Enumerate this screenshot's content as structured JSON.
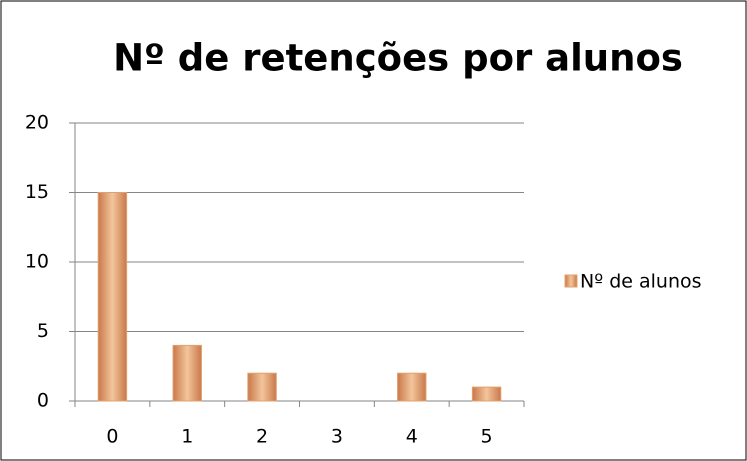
{
  "chart_data": {
    "type": "bar",
    "title": "Nº de retenções por alunos",
    "categories": [
      "0",
      "1",
      "2",
      "3",
      "4",
      "5"
    ],
    "series": [
      {
        "name": "Nº de alunos",
        "color": "#e3a06e",
        "values": [
          15,
          4,
          2,
          0,
          2,
          1
        ]
      }
    ],
    "ylim": [
      0,
      20
    ],
    "yticks": [
      0,
      5,
      10,
      15,
      20
    ],
    "grid": true,
    "legend": "right"
  }
}
